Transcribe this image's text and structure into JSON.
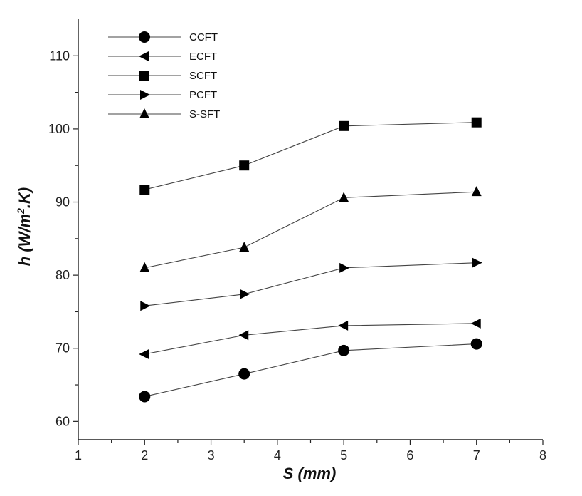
{
  "chart_data": {
    "type": "line",
    "title": "",
    "xlabel_main": "S",
    "xlabel_unit": "(mm)",
    "ylabel_main": "h",
    "ylabel_unit_pre": "(W/m",
    "ylabel_unit_sup": "2",
    "ylabel_unit_post": ".K)",
    "xlim": [
      1,
      8
    ],
    "ylim": [
      57.5,
      115
    ],
    "xticks": [
      1,
      2,
      3,
      4,
      5,
      6,
      7,
      8
    ],
    "yticks": [
      60,
      70,
      80,
      90,
      100,
      110
    ],
    "x": [
      2,
      3.5,
      5,
      7
    ],
    "grid": false,
    "legend_position": "top-left",
    "series": [
      {
        "name": "CCFT",
        "marker": "circle",
        "values": [
          63.4,
          66.5,
          69.7,
          70.6
        ]
      },
      {
        "name": "ECFT",
        "marker": "triangle-left",
        "values": [
          69.2,
          71.8,
          73.1,
          73.4
        ]
      },
      {
        "name": "SCFT",
        "marker": "square",
        "values": [
          91.7,
          95.0,
          100.4,
          100.9
        ]
      },
      {
        "name": "PCFT",
        "marker": "triangle-right",
        "values": [
          75.8,
          77.4,
          81.0,
          81.7
        ]
      },
      {
        "name": "S-SFT",
        "marker": "triangle-up",
        "values": [
          81.0,
          83.8,
          90.6,
          91.4
        ]
      }
    ]
  }
}
